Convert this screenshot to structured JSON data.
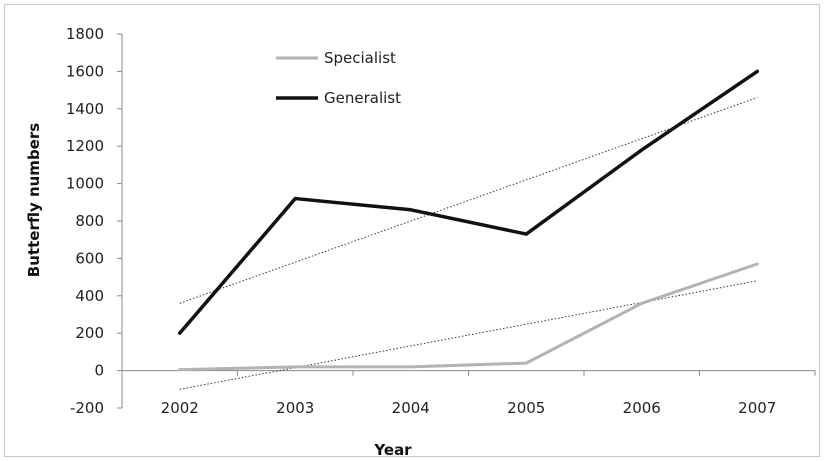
{
  "chart_data": {
    "type": "line",
    "title": "",
    "xlabel": "Year",
    "ylabel": "Butterfly numbers",
    "categories": [
      "2002",
      "2003",
      "2004",
      "2005",
      "2006",
      "2007"
    ],
    "ylim": [
      -200,
      1800
    ],
    "yticks": [
      -200,
      0,
      200,
      400,
      600,
      800,
      1000,
      1200,
      1400,
      1600,
      1800
    ],
    "grid": false,
    "legend_position": "top-center",
    "series": [
      {
        "name": "Specialist",
        "values": [
          5,
          20,
          20,
          40,
          360,
          570
        ],
        "color": "#b3b3b3",
        "trendline": [
          -100,
          480
        ]
      },
      {
        "name": "Generalist",
        "values": [
          200,
          920,
          860,
          730,
          1180,
          1600
        ],
        "color": "#111111",
        "trendline": [
          360,
          1460
        ]
      }
    ]
  }
}
